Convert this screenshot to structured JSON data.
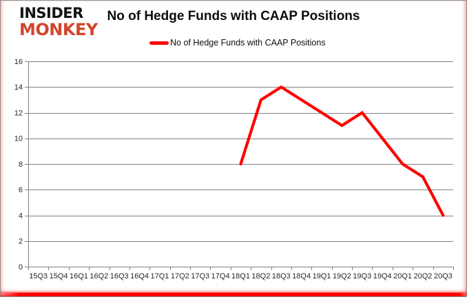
{
  "logo": {
    "line1": "INSIDER",
    "line2": "MONKEY"
  },
  "header": {
    "title": "No of Hedge Funds with CAAP Positions"
  },
  "legend": {
    "label": "No of Hedge Funds with CAAP Positions"
  },
  "colors": {
    "series_line": "#FF0000",
    "gridline": "#808080",
    "axis_text": "#262626",
    "logo_black": "#141414",
    "logo_red": "#D2452C",
    "frame_border": "#8C8C8C"
  },
  "chart_data": {
    "type": "line",
    "title": "No of Hedge Funds with CAAP Positions",
    "categories": [
      "15Q3",
      "15Q4",
      "16Q1",
      "16Q2",
      "16Q3",
      "16Q4",
      "17Q1",
      "17Q2",
      "17Q3",
      "17Q4",
      "18Q1",
      "18Q2",
      "18Q3",
      "18Q4",
      "19Q1",
      "19Q2",
      "19Q3",
      "19Q4",
      "20Q1",
      "20Q2",
      "20Q3"
    ],
    "series": [
      {
        "name": "No of Hedge Funds with CAAP Positions",
        "color": "#FF0000",
        "values": [
          null,
          null,
          null,
          null,
          null,
          null,
          null,
          null,
          null,
          null,
          8,
          13,
          14,
          13,
          12,
          11,
          12,
          10,
          8,
          7,
          4
        ]
      }
    ],
    "ylim": [
      0,
      16
    ],
    "yticks": [
      0,
      2,
      4,
      6,
      8,
      10,
      12,
      14,
      16
    ],
    "xlabel": "",
    "ylabel": "",
    "grid": true,
    "legend_position": "top-center"
  }
}
